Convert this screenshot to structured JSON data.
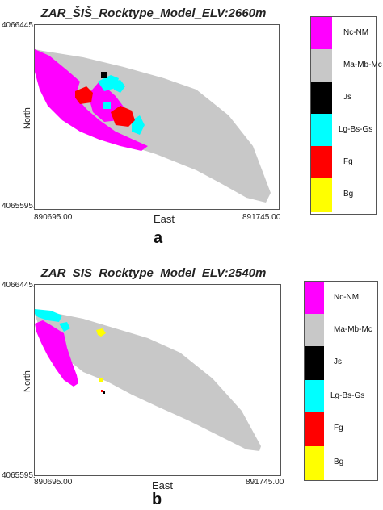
{
  "rock_colors": {
    "Nc-NM": "#ff00ff",
    "Ma-Mb-Mc": "#c8c8c8",
    "Js": "#000000",
    "Lg-Bs-Gs": "#00ffff",
    "Fg": "#ff0000",
    "Bg": "#ffff00"
  },
  "panels": [
    {
      "title": "ZAR_ŠIŠ_Rocktype_Model_ELV:2660m",
      "y_top": "4066445.",
      "y_bottom": "4065595.",
      "x_left": "890695.00",
      "x_right": "891745.00",
      "ylabel": "North",
      "xlabel": "East",
      "letter": "a",
      "legend": [
        "Nc-NM",
        "Ma-Mb-Mc",
        "Js",
        "Lg-Bs-Gs",
        "Fg",
        "Bg"
      ]
    },
    {
      "title": "ZAR_SIS_Rocktype_Model_ELV:2540m",
      "y_top": "4066445.",
      "y_bottom": "4065595.",
      "x_left": "890695.00",
      "x_right": "891745.00",
      "ylabel": "North",
      "xlabel": "East",
      "letter": "b",
      "legend": [
        "Nc-NM",
        "Ma-Mb-Mc",
        "Js",
        "Lg-Bs-Gs",
        "Fg",
        "Bg"
      ]
    }
  ]
}
